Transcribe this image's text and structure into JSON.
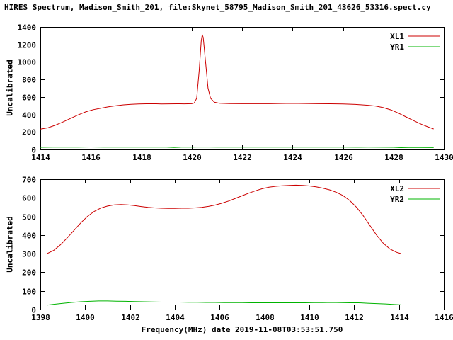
{
  "title": "HIRES Spectrum, Madison_Smith_201, file:Skynet_58795_Madison_Smith_201_43626_53316.spect.cy",
  "xlabel": "Frequency(MHz) date 2019-11-08T03:53:51.750",
  "colors": {
    "red": "#cc0000",
    "green": "#00b400",
    "axis": "#000000",
    "background": "#ffffff"
  },
  "chart_data": [
    {
      "type": "line",
      "ylabel": "Uncalibrated",
      "xlim": [
        1414,
        1430
      ],
      "ylim": [
        0,
        1400
      ],
      "xticks": [
        1414,
        1416,
        1418,
        1420,
        1422,
        1424,
        1426,
        1428,
        1430
      ],
      "yticks": [
        0,
        200,
        400,
        600,
        800,
        1000,
        1200,
        1400
      ],
      "grid": false,
      "legend_position": "top-right",
      "series": [
        {
          "name": "XL1",
          "color_key": "red",
          "points": [
            [
              1414.0,
              232
            ],
            [
              1414.3,
              248
            ],
            [
              1414.6,
              278
            ],
            [
              1414.9,
              315
            ],
            [
              1415.2,
              355
            ],
            [
              1415.5,
              395
            ],
            [
              1415.8,
              430
            ],
            [
              1416.1,
              455
            ],
            [
              1416.4,
              472
            ],
            [
              1416.7,
              488
            ],
            [
              1417.0,
              500
            ],
            [
              1417.3,
              510
            ],
            [
              1417.6,
              516
            ],
            [
              1417.9,
              520
            ],
            [
              1418.2,
              522
            ],
            [
              1418.5,
              523
            ],
            [
              1418.8,
              520
            ],
            [
              1419.1,
              521
            ],
            [
              1419.4,
              522
            ],
            [
              1419.7,
              521
            ],
            [
              1420.0,
              523
            ],
            [
              1420.1,
              530
            ],
            [
              1420.2,
              585
            ],
            [
              1420.3,
              900
            ],
            [
              1420.38,
              1240
            ],
            [
              1420.42,
              1310
            ],
            [
              1420.46,
              1280
            ],
            [
              1420.55,
              1010
            ],
            [
              1420.65,
              700
            ],
            [
              1420.75,
              585
            ],
            [
              1420.9,
              540
            ],
            [
              1421.1,
              528
            ],
            [
              1421.5,
              524
            ],
            [
              1422.0,
              523
            ],
            [
              1422.5,
              524
            ],
            [
              1423.0,
              523
            ],
            [
              1423.5,
              525
            ],
            [
              1424.0,
              527
            ],
            [
              1424.5,
              525
            ],
            [
              1425.0,
              523
            ],
            [
              1425.5,
              522
            ],
            [
              1426.0,
              520
            ],
            [
              1426.5,
              515
            ],
            [
              1427.0,
              505
            ],
            [
              1427.3,
              495
            ],
            [
              1427.6,
              478
            ],
            [
              1427.9,
              452
            ],
            [
              1428.2,
              415
            ],
            [
              1428.5,
              372
            ],
            [
              1428.8,
              330
            ],
            [
              1429.1,
              290
            ],
            [
              1429.4,
              255
            ],
            [
              1429.6,
              235
            ]
          ]
        },
        {
          "name": "YR1",
          "color_key": "green",
          "points": [
            [
              1414.0,
              24
            ],
            [
              1414.5,
              26
            ],
            [
              1415.0,
              27
            ],
            [
              1415.5,
              26
            ],
            [
              1416.0,
              28
            ],
            [
              1416.5,
              27
            ],
            [
              1417.0,
              26
            ],
            [
              1417.5,
              27
            ],
            [
              1418.0,
              26
            ],
            [
              1418.5,
              27
            ],
            [
              1419.0,
              26
            ],
            [
              1419.3,
              22
            ],
            [
              1419.6,
              26
            ],
            [
              1420.0,
              27
            ],
            [
              1420.4,
              28
            ],
            [
              1421.0,
              27
            ],
            [
              1421.5,
              26
            ],
            [
              1422.0,
              27
            ],
            [
              1422.5,
              26
            ],
            [
              1423.0,
              27
            ],
            [
              1423.5,
              26
            ],
            [
              1424.0,
              27
            ],
            [
              1424.5,
              26
            ],
            [
              1425.0,
              27
            ],
            [
              1425.5,
              26
            ],
            [
              1426.0,
              26
            ],
            [
              1426.5,
              25
            ],
            [
              1427.0,
              26
            ],
            [
              1427.5,
              25
            ],
            [
              1428.0,
              24
            ],
            [
              1428.3,
              20
            ],
            [
              1428.6,
              23
            ],
            [
              1429.0,
              22
            ],
            [
              1429.6,
              21
            ]
          ]
        }
      ]
    },
    {
      "type": "line",
      "ylabel": "Uncalibrated",
      "xlim": [
        1398,
        1416
      ],
      "ylim": [
        0,
        700
      ],
      "xticks": [
        1398,
        1400,
        1402,
        1404,
        1406,
        1408,
        1410,
        1412,
        1414,
        1416
      ],
      "yticks": [
        0,
        100,
        200,
        300,
        400,
        500,
        600,
        700
      ],
      "grid": false,
      "legend_position": "top-right",
      "series": [
        {
          "name": "XL2",
          "color_key": "red",
          "points": [
            [
              1398.3,
              300
            ],
            [
              1398.6,
              318
            ],
            [
              1398.9,
              348
            ],
            [
              1399.2,
              385
            ],
            [
              1399.5,
              425
            ],
            [
              1399.8,
              465
            ],
            [
              1400.1,
              500
            ],
            [
              1400.4,
              527
            ],
            [
              1400.7,
              545
            ],
            [
              1401.0,
              556
            ],
            [
              1401.3,
              562
            ],
            [
              1401.6,
              564
            ],
            [
              1401.9,
              562
            ],
            [
              1402.2,
              558
            ],
            [
              1402.5,
              553
            ],
            [
              1402.8,
              549
            ],
            [
              1403.1,
              546
            ],
            [
              1403.4,
              544
            ],
            [
              1403.7,
              543
            ],
            [
              1404.0,
              543
            ],
            [
              1404.3,
              544
            ],
            [
              1404.6,
              544
            ],
            [
              1404.9,
              546
            ],
            [
              1405.2,
              549
            ],
            [
              1405.5,
              554
            ],
            [
              1405.8,
              561
            ],
            [
              1406.1,
              571
            ],
            [
              1406.4,
              583
            ],
            [
              1406.7,
              597
            ],
            [
              1407.0,
              611
            ],
            [
              1407.3,
              625
            ],
            [
              1407.6,
              638
            ],
            [
              1407.9,
              649
            ],
            [
              1408.2,
              657
            ],
            [
              1408.5,
              662
            ],
            [
              1408.8,
              665
            ],
            [
              1409.1,
              667
            ],
            [
              1409.4,
              668
            ],
            [
              1409.7,
              667
            ],
            [
              1410.0,
              664
            ],
            [
              1410.3,
              659
            ],
            [
              1410.6,
              652
            ],
            [
              1410.9,
              643
            ],
            [
              1411.2,
              630
            ],
            [
              1411.5,
              612
            ],
            [
              1411.8,
              586
            ],
            [
              1412.1,
              550
            ],
            [
              1412.4,
              505
            ],
            [
              1412.7,
              452
            ],
            [
              1413.0,
              400
            ],
            [
              1413.3,
              356
            ],
            [
              1413.6,
              325
            ],
            [
              1413.9,
              307
            ],
            [
              1414.1,
              300
            ]
          ]
        },
        {
          "name": "YR2",
          "color_key": "green",
          "points": [
            [
              1398.3,
              24
            ],
            [
              1398.6,
              28
            ],
            [
              1399.0,
              33
            ],
            [
              1399.4,
              38
            ],
            [
              1399.8,
              42
            ],
            [
              1400.2,
              44
            ],
            [
              1400.6,
              46
            ],
            [
              1401.0,
              46
            ],
            [
              1401.4,
              45
            ],
            [
              1401.8,
              44
            ],
            [
              1402.2,
              43
            ],
            [
              1402.6,
              42
            ],
            [
              1403.0,
              41
            ],
            [
              1403.4,
              40
            ],
            [
              1403.8,
              40
            ],
            [
              1404.2,
              40
            ],
            [
              1404.6,
              39
            ],
            [
              1405.0,
              39
            ],
            [
              1405.4,
              38
            ],
            [
              1405.8,
              38
            ],
            [
              1406.2,
              37
            ],
            [
              1406.6,
              37
            ],
            [
              1407.0,
              37
            ],
            [
              1407.4,
              36
            ],
            [
              1407.8,
              36
            ],
            [
              1408.2,
              36
            ],
            [
              1408.6,
              36
            ],
            [
              1409.0,
              36
            ],
            [
              1409.4,
              36
            ],
            [
              1409.8,
              36
            ],
            [
              1410.2,
              37
            ],
            [
              1410.6,
              37
            ],
            [
              1411.0,
              38
            ],
            [
              1411.4,
              37
            ],
            [
              1411.8,
              36
            ],
            [
              1412.2,
              36
            ],
            [
              1412.6,
              34
            ],
            [
              1413.0,
              32
            ],
            [
              1413.4,
              30
            ],
            [
              1413.8,
              27
            ],
            [
              1414.1,
              25
            ]
          ]
        }
      ]
    }
  ]
}
